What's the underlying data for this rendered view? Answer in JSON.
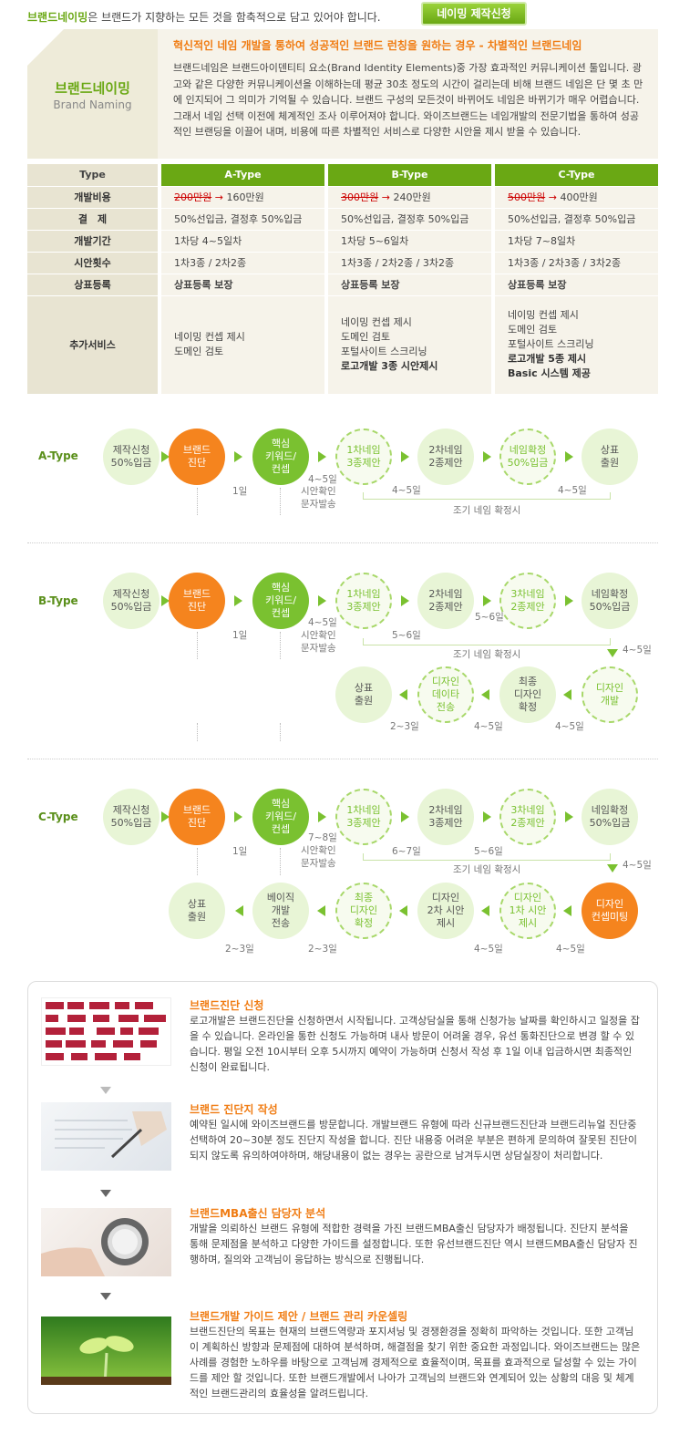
{
  "header": {
    "brand": "브랜드네이밍",
    "tagline": "은 브랜드가 지향하는 모든 것을 함축적으로 담고 있어야 합니다.",
    "order_button": "네이밍 제작신청"
  },
  "intro": {
    "name_ko": "브랜드네이밍",
    "name_en": "Brand Naming",
    "title": "혁신적인 네임 개발을 통하여 성공적인 브랜드 런칭을 원하는 경우 - 차별적인 브랜드네임",
    "body": "브랜드네임은 브랜드아이덴티티 요소(Brand Identity Elements)중 가장 효과적인 커뮤니케이션 툴입니다. 광고와 같은 다양한 커뮤니케이션을 이해하는데 평균 30초 정도의 시간이 걸리는데 비해 브랜드 네임은 단 몇 초 만에 인지되어 그 의미가 기억될 수 있습니다. 브랜드 구성의 모든것이 바뀌어도 네임은 바뀌기가 매우 어렵습니다. 그래서 네임 선택 이전에 체계적인 조사 이루어져야 합니다. 와이즈브랜드는 네임개발의 전문기법을 통하여 성공적인 브랜딩을 이끌어 내며, 비용에 따른 차별적인 서비스로 다양한 시안을 제시 받을 수 있습니다."
  },
  "price_table": {
    "type_header": "Type",
    "columns": [
      "A-Type",
      "B-Type",
      "C-Type"
    ],
    "rows": [
      {
        "label": "개발비용",
        "old": [
          "200만원",
          "300만원",
          "500만원"
        ],
        "new": [
          "160만원",
          "240만원",
          "400만원"
        ]
      },
      {
        "label": "결　제",
        "values": [
          "50%선입금, 결정후 50%입금",
          "50%선입금, 결정후 50%입금",
          "50%선입금, 결정후 50%입금"
        ]
      },
      {
        "label": "개발기간",
        "values": [
          "1차당 4~5일차",
          "1차당 5~6일차",
          "1차당 7~8일차"
        ]
      },
      {
        "label": "시안횟수",
        "values": [
          "1차3종 / 2차2종",
          "1차3종 / 2차2종 / 3차2종",
          "1차3종 / 2차3종 / 3차2종"
        ]
      },
      {
        "label": "상표등록",
        "values": [
          "상표등록 보장",
          "상표등록 보장",
          "상표등록 보장"
        ]
      }
    ],
    "extra_label": "추가서비스",
    "extra": [
      {
        "lines": [
          "네이밍 컨셉 제시",
          "도메인 검토"
        ],
        "bold": []
      },
      {
        "lines": [
          "네이밍 컨셉 제시",
          "도메인 검토",
          "포털사이트 스크리닝"
        ],
        "bold": [
          "로고개발 3종 시안제시"
        ]
      },
      {
        "lines": [
          "네이밍 컨셉 제시",
          "도메인 검토",
          "포털사이트 스크리닝"
        ],
        "bold": [
          "로고개발 5종 제시",
          "Basic 시스템 제공"
        ]
      }
    ]
  },
  "flows": {
    "a": {
      "label": "A-Type",
      "c1": "제작신청\n50%입금",
      "c2": "브랜드\n진단",
      "c3": "핵심\n키워드/\n컨셉",
      "c4": "1차네임\n3종제안",
      "c5": "2차네임\n2종제안",
      "c6": "네임확정\n50%입금",
      "c7": "상표\n출원",
      "d1": "1일",
      "d2": "4~5일",
      "d2b": "시안확인\n문자발송",
      "d3": "4~5일",
      "d4": "4~5일",
      "early": "조기 네임 확정시"
    },
    "b": {
      "label": "B-Type",
      "c1": "제작신청\n50%입금",
      "c2": "브랜드\n진단",
      "c3": "핵심\n키워드/\n컨셉",
      "c4": "1차네임\n3종제안",
      "c5": "2차네임\n2종제안",
      "c6": "3차네임\n2종제안",
      "c7": "네임확정\n50%입금",
      "r1": "상표\n출원",
      "r2": "디자인\n데이타\n전송",
      "r3": "최종\n디자인\n확정",
      "r4": "디자인\n개발",
      "d1": "1일",
      "d2": "4~5일",
      "d2b": "시안확인\n문자발송",
      "d3": "5~6일",
      "d4": "5~6일",
      "d5": "4~5일",
      "early": "조기 네임 확정시",
      "rd1": "2~3일",
      "rd2": "4~5일",
      "rd3": "4~5일"
    },
    "c": {
      "label": "C-Type",
      "c1": "제작신청\n50%입금",
      "c2": "브랜드\n진단",
      "c3": "핵심\n키워드/\n컨셉",
      "c4": "1차네임\n3종제안",
      "c5": "2차네임\n3종제안",
      "c6": "3차네임\n2종제안",
      "c7": "네임확정\n50%입금",
      "r1": "상표\n출원",
      "r2": "베이직\n개발\n전송",
      "r3": "최종\n디자인\n확정",
      "r4": "디자인\n2차 시안\n제시",
      "r5": "디자인\n1차 시안\n제시",
      "r6": "디자인\n컨셉미팅",
      "d1": "1일",
      "d2": "7~8일",
      "d2b": "시안확인\n문자발송",
      "d3": "6~7일",
      "d4": "5~6일",
      "d5": "4~5일",
      "early": "조기 네임 확정시",
      "rd1": "2~3일",
      "rd2": "2~3일",
      "rd3": "4~5일",
      "rd4": "4~5일"
    }
  },
  "process": [
    {
      "title": "브랜드진단 신청",
      "body": "로고개발은 브랜드진단을 신청하면서 시작됩니다. 고객상담실을 통해 신청가능 날짜를 확인하시고 일정을 잡을 수 있습니다. 온라인을 통한 신청도 가능하며 내사 방문이 어려울 경우, 유선 통화진단으로 변경 할 수 있습니다. 평일 오전 10시부터 오후 5시까지 예약이 가능하며 신청서 작성 후 1일 이내 입금하시면 최종적인 신청이 완료됩니다."
    },
    {
      "title": "브랜드 진단지 작성",
      "body": "예약된 일시에 와이즈브랜드를 방문합니다. 개발브랜드 유형에 따라 신규브랜드진단과 브랜드리뉴얼 진단중 선택하여 20~30분 정도 진단지 작성을 합니다. 진단 내용중 어려운 부분은 편하게 문의하여 잘못된 진단이 되지 않도록 유의하여야하며, 해당내용이 없는 경우는 공란으로 남겨두시면 상담실장이 처리합니다."
    },
    {
      "title": "브랜드MBA출신 담당자 분석",
      "body": "개발을 의뢰하신 브랜드 유형에 적합한 경력을 가진 브랜드MBA출신 담당자가 배정됩니다. 진단지 분석을 통해 문제점을 분석하고 다양한 가이드를 설정합니다. 또한 유선브랜드진단 역시 브랜드MBA출신 담당자 진행하며, 질의와 고객님이 응답하는 방식으로 진행됩니다."
    },
    {
      "title": "브랜드개발 가이드 제안 / 브랜드 관리 카운셀링",
      "body": "브랜드진단의 목표는 현재의 브랜드역량과 포지셔닝 및 경쟁환경을 정확히 파악하는 것입니다. 또한 고객님이 계획하신 방향과 문제점에 대하여 분석하며, 해결점을 찾기 위한 중요한 과정입니다. 와이즈브랜드는 많은 사례를 경험한 노하우를 바탕으로 고객님께 경제적으로 효율적이며, 목표를 효과적으로 달성할 수 있는 가이드를 제안 할 것입니다. 또한 브랜드개발에서 나아가 고객님의 브랜드와 연계되어 있는 상황의 대응 및 체계적인 브랜드관리의 효율성을 알려드립니다."
    }
  ]
}
